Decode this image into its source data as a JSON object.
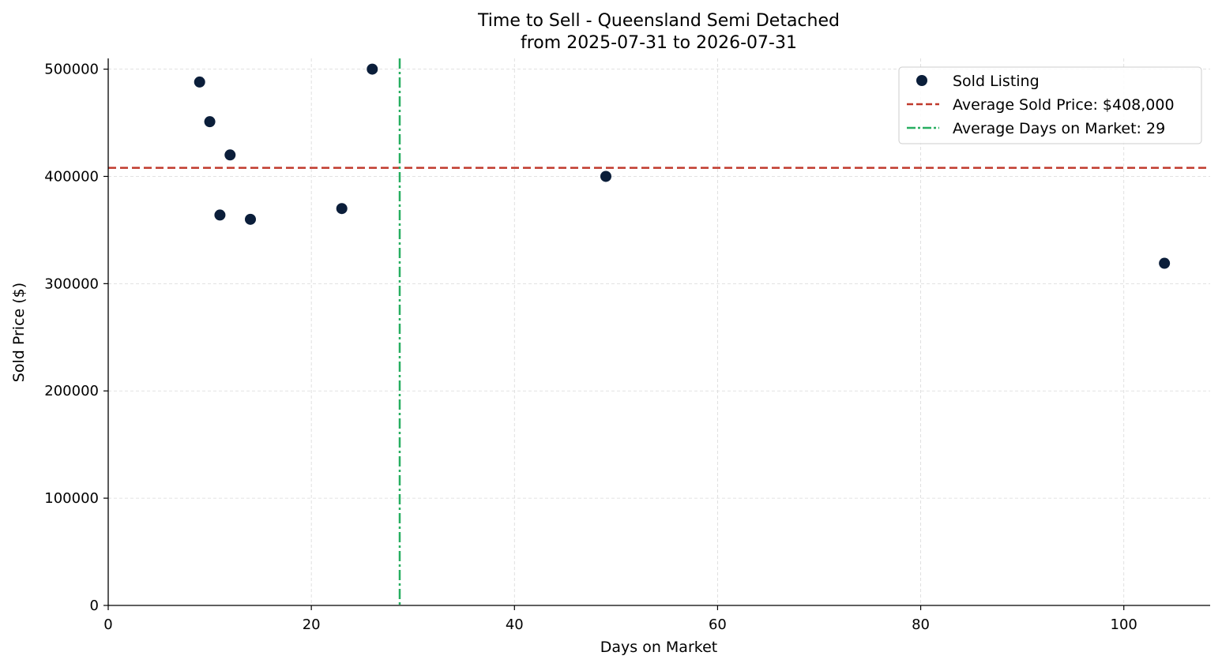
{
  "chart_data": {
    "type": "scatter",
    "title": "Time to Sell - Queensland Semi Detached",
    "subtitle": "from 2025-07-31 to 2026-07-31",
    "xlabel": "Days on Market",
    "ylabel": "Sold Price ($)",
    "xlim": [
      0,
      108.5
    ],
    "ylim": [
      0,
      510000
    ],
    "xticks": [
      0,
      20,
      40,
      60,
      80,
      100
    ],
    "yticks": [
      0,
      100000,
      200000,
      300000,
      400000,
      500000
    ],
    "grid": true,
    "legend_position": "top-right",
    "series": [
      {
        "name": "Sold Listing",
        "color": "#0b1e3a",
        "points": [
          {
            "x": 9,
            "y": 488000
          },
          {
            "x": 10,
            "y": 451000
          },
          {
            "x": 11,
            "y": 364000
          },
          {
            "x": 12,
            "y": 420000
          },
          {
            "x": 14,
            "y": 360000
          },
          {
            "x": 23,
            "y": 370000
          },
          {
            "x": 26,
            "y": 500000
          },
          {
            "x": 49,
            "y": 400000
          },
          {
            "x": 104,
            "y": 319000
          }
        ]
      }
    ],
    "reference_lines": [
      {
        "name": "Average Sold Price: $408,000",
        "orientation": "horizontal",
        "value": 408000,
        "style": "dashed",
        "color": "#c0392b"
      },
      {
        "name": "Average Days on Market: 29",
        "orientation": "vertical",
        "value": 28.7,
        "style": "dashdot",
        "color": "#27ae60"
      }
    ]
  }
}
